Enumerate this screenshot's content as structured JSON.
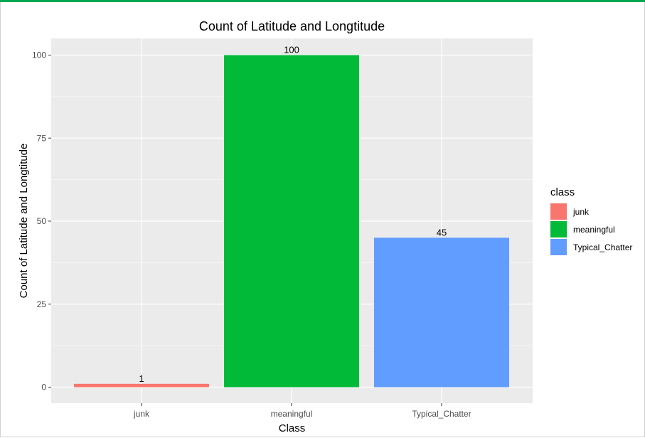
{
  "chart_data": {
    "type": "bar",
    "title": "Count of Latitude and Longtitude",
    "xlabel": "Class",
    "ylabel": "Count of Latitude and Longtitude",
    "categories": [
      "junk",
      "meaningful",
      "Typical_Chatter"
    ],
    "values": [
      1,
      100,
      45
    ],
    "data_labels": [
      "1",
      "100",
      "45"
    ],
    "colors": [
      "#F8766D",
      "#00BA38",
      "#619CFF"
    ],
    "ylim": [
      0,
      100
    ],
    "yticks": [
      0,
      25,
      50,
      75,
      100
    ],
    "ytick_labels": [
      "0",
      "25",
      "50",
      "75",
      "100"
    ],
    "grid": true,
    "panel_background": "#EBEBEB",
    "legend": {
      "title": "class",
      "position": "right",
      "entries": [
        "junk",
        "meaningful",
        "Typical_Chatter"
      ]
    }
  }
}
